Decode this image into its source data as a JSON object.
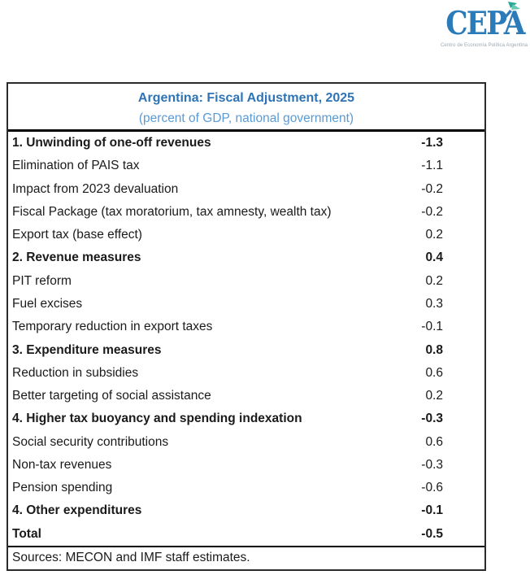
{
  "logo": {
    "text": "CEPA",
    "tagline": "Centro de Economía Política Argentina"
  },
  "table": {
    "title": "Argentina: Fiscal Adjustment, 2025",
    "subtitle": "(percent of GDP, national government)",
    "source": "Sources: MECON and IMF staff estimates.",
    "rows": [
      {
        "label": "1. Unwinding of one-off revenues",
        "value": "-1.3",
        "bold": true
      },
      {
        "label": "Elimination of PAIS tax",
        "value": "-1.1",
        "bold": false
      },
      {
        "label": "Impact from 2023 devaluation",
        "value": "-0.2",
        "bold": false
      },
      {
        "label": "Fiscal Package (tax moratorium, tax amnesty, wealth tax)",
        "value": "-0.2",
        "bold": false
      },
      {
        "label": "Export tax (base effect)",
        "value": "0.2",
        "bold": false
      },
      {
        "label": "2. Revenue measures",
        "value": "0.4",
        "bold": true
      },
      {
        "label": "PIT reform",
        "value": "0.2",
        "bold": false
      },
      {
        "label": "Fuel excises",
        "value": "0.3",
        "bold": false
      },
      {
        "label": "Temporary reduction in export taxes",
        "value": "-0.1",
        "bold": false
      },
      {
        "label": "3. Expenditure measures",
        "value": "0.8",
        "bold": true
      },
      {
        "label": "Reduction in subsidies",
        "value": "0.6",
        "bold": false
      },
      {
        "label": "Better targeting of social assistance",
        "value": "0.2",
        "bold": false
      },
      {
        "label": "4. Higher tax buoyancy and spending indexation",
        "value": "-0.3",
        "bold": true
      },
      {
        "label": "Social security contributions",
        "value": "0.6",
        "bold": false
      },
      {
        "label": "Non-tax revenues",
        "value": "-0.3",
        "bold": false
      },
      {
        "label": "Pension spending",
        "value": "-0.6",
        "bold": false
      },
      {
        "label": "4. Other expenditures",
        "value": "-0.1",
        "bold": true
      },
      {
        "label": "Total",
        "value": "-0.5",
        "bold": true
      }
    ]
  },
  "colors": {
    "title_blue": "#2E74B5",
    "subtitle_blue": "#5B9BD5",
    "logo_blue": "#2B7BB9",
    "logo_teal": "#27A895",
    "logo_teal_light": "#6CC6B4",
    "tagline_gray": "#9AA7B0",
    "text": "#1A1A1A",
    "border_dark": "#2B2B2B"
  },
  "chart_data": {
    "type": "table",
    "title": "Argentina: Fiscal Adjustment, 2025",
    "subtitle": "(percent of GDP, national government)",
    "unit": "percent of GDP",
    "categories": [
      "1. Unwinding of one-off revenues",
      "Elimination of PAIS tax",
      "Impact from 2023 devaluation",
      "Fiscal Package (tax moratorium, tax amnesty, wealth tax)",
      "Export tax (base effect)",
      "2. Revenue measures",
      "PIT reform",
      "Fuel excises",
      "Temporary reduction in export taxes",
      "3. Expenditure measures",
      "Reduction in subsidies",
      "Better targeting of social assistance",
      "4. Higher tax buoyancy and spending indexation",
      "Social security contributions",
      "Non-tax revenues",
      "Pension spending",
      "4. Other expenditures",
      "Total"
    ],
    "values": [
      -1.3,
      -1.1,
      -0.2,
      -0.2,
      0.2,
      0.4,
      0.2,
      0.3,
      -0.1,
      0.8,
      0.6,
      0.2,
      -0.3,
      0.6,
      -0.3,
      -0.6,
      -0.1,
      -0.5
    ],
    "source": "Sources: MECON and IMF staff estimates."
  }
}
